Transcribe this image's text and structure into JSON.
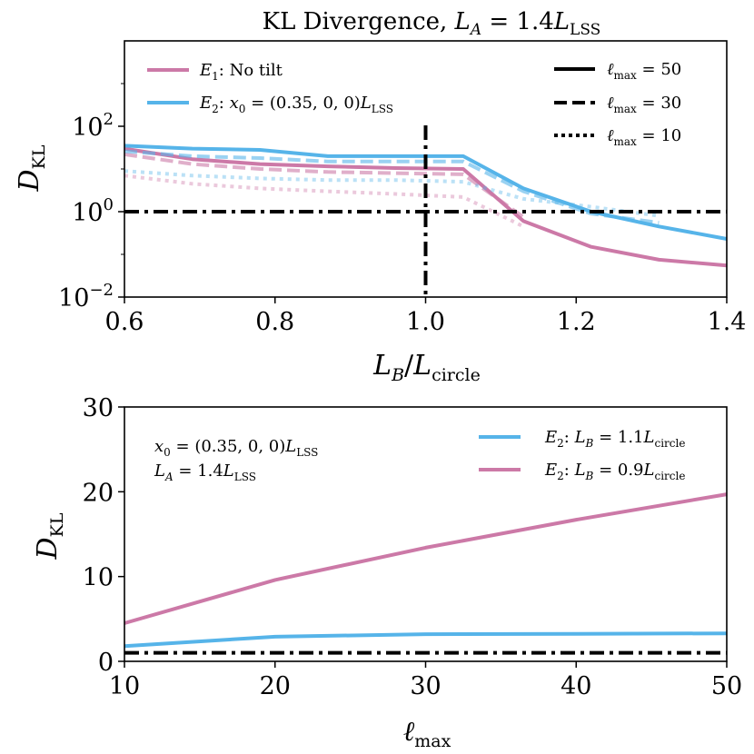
{
  "colors": {
    "pink": "#CC79A7",
    "blue": "#56B4E9",
    "black": "#000000"
  },
  "chart_data": [
    {
      "type": "line",
      "title": "KL Divergence, L_A = 1.4 L_LSS",
      "title_main": "KL Divergence, ",
      "title_math": "L",
      "title_math_sub": "A",
      "title_eq": " = 1.4",
      "title_math2": "L",
      "title_math2_sub": "LSS",
      "xlabel": "L_B / L_circle",
      "xlabel_a": "L",
      "xlabel_a_sub": "B",
      "xlabel_slash": "/",
      "xlabel_b": "L",
      "xlabel_b_sub": "circle",
      "ylabel": "D_KL",
      "ylabel_main": "D",
      "ylabel_sub": "KL",
      "xlim": [
        0.6,
        1.4
      ],
      "ylog": true,
      "ylim_log10": [
        -2,
        4
      ],
      "xticks": [
        "0.6",
        "0.8",
        "1.0",
        "1.2",
        "1.4"
      ],
      "yticks": [
        {
          "base": "10",
          "exp": "2",
          "value": 100
        },
        {
          "base": "10",
          "exp": "0",
          "value": 1
        },
        {
          "base": "10",
          "exp": "−2",
          "value": 0.01
        }
      ],
      "reference_lines": {
        "hline_y": 1,
        "vline_x": 1.0,
        "style": "dashdot"
      },
      "x": [
        0.6,
        0.69,
        0.78,
        0.87,
        0.96,
        1.05,
        1.13,
        1.22,
        1.31,
        1.4
      ],
      "series": [
        {
          "name": "E1: No tilt",
          "model": "E1",
          "lmax": 50,
          "style": "solid",
          "color": "pink",
          "values": [
            30,
            17,
            13,
            11.5,
            10.5,
            10,
            0.6,
            0.15,
            0.075,
            0.055
          ]
        },
        {
          "name": "E1: No tilt",
          "model": "E1",
          "lmax": 30,
          "style": "dashed",
          "color": "pink",
          "values": [
            22,
            13,
            10,
            8.5,
            8,
            7.5,
            0.75,
            null,
            null,
            null
          ]
        },
        {
          "name": "E1: No tilt",
          "model": "E1",
          "lmax": 10,
          "style": "dotted",
          "color": "pink",
          "values": [
            7,
            4.5,
            3.5,
            3,
            2.6,
            2.2,
            0.45,
            null,
            null,
            null
          ]
        },
        {
          "name": "E2: x0 = (0.35, 0, 0) L_LSS",
          "model": "E2",
          "lmax": 50,
          "style": "solid",
          "color": "blue",
          "values": [
            35,
            30,
            28,
            20,
            20,
            20,
            3.5,
            1.0,
            0.45,
            0.23
          ]
        },
        {
          "name": "E2: x0 = (0.35, 0, 0) L_LSS",
          "model": "E2",
          "lmax": 30,
          "style": "dashed",
          "color": "blue",
          "values": [
            26,
            20,
            18,
            15,
            15,
            15,
            3.0,
            0.9,
            0.55,
            null
          ]
        },
        {
          "name": "E2: x0 = (0.35, 0, 0) L_LSS",
          "model": "E2",
          "lmax": 10,
          "style": "dotted",
          "color": "blue",
          "values": [
            9,
            7,
            6,
            5.5,
            5.5,
            5,
            2.0,
            1.3,
            0.8,
            null
          ]
        }
      ],
      "legend_left": [
        {
          "label_main": "E",
          "label_sub": "1",
          "label_rest": ": No tilt",
          "color": "pink"
        },
        {
          "label_main": "E",
          "label_sub": "2",
          "label_rest": ": ",
          "label_x": "x",
          "label_x_sub": "0",
          "label_eq": " = (0.35, 0, 0)",
          "label_L": "L",
          "label_L_sub": "LSS",
          "color": "blue"
        }
      ],
      "legend_right": [
        {
          "label_main": "ℓ",
          "label_sub": "max",
          "label_rest": " = 50",
          "style": "solid"
        },
        {
          "label_main": "ℓ",
          "label_sub": "max",
          "label_rest": " = 30",
          "style": "dashed"
        },
        {
          "label_main": "ℓ",
          "label_sub": "max",
          "label_rest": " = 10",
          "style": "dotted"
        }
      ],
      "legend_placement": "top"
    },
    {
      "type": "line",
      "xlabel": "ℓ_max",
      "xlabel_main": "ℓ",
      "xlabel_sub": "max",
      "ylabel": "D_KL",
      "ylabel_main": "D",
      "ylabel_sub": "KL",
      "xlim": [
        10,
        50
      ],
      "ylim": [
        0,
        30
      ],
      "xticks": [
        "10",
        "20",
        "30",
        "40",
        "50"
      ],
      "yticks": [
        "0",
        "10",
        "20",
        "30"
      ],
      "reference_lines": {
        "hline_y": 1,
        "style": "dashdot"
      },
      "x": [
        10,
        20,
        30,
        40,
        50
      ],
      "series": [
        {
          "name": "E2: L_B = 1.1 L_circle",
          "color": "blue",
          "values": [
            1.8,
            2.9,
            3.2,
            3.25,
            3.3
          ]
        },
        {
          "name": "E2: L_B = 0.9 L_circle",
          "color": "pink",
          "values": [
            4.5,
            9.6,
            13.4,
            16.7,
            19.7
          ]
        }
      ],
      "annotation": {
        "line1_x": "x",
        "line1_sub": "0",
        "line1_eq": " = (0.35, 0, 0)",
        "line1_L": "L",
        "line1_L_sub": "LSS",
        "line2_L": "L",
        "line2_sub": "A",
        "line2_eq": " = 1.4",
        "line2_L2": "L",
        "line2_L2_sub": "LSS"
      },
      "legend": [
        {
          "label_main": "E",
          "label_sub": "2",
          "label_rest": ": ",
          "label_L": "L",
          "label_L_sub": "B",
          "label_eq": " = 1.1",
          "label_L2": "L",
          "label_L2_sub": "circle",
          "color": "blue"
        },
        {
          "label_main": "E",
          "label_sub": "2",
          "label_rest": ": ",
          "label_L": "L",
          "label_L_sub": "B",
          "label_eq": " = 0.9",
          "label_L2": "L",
          "label_L2_sub": "circle",
          "color": "pink"
        }
      ],
      "legend_placement": "top-right"
    }
  ]
}
